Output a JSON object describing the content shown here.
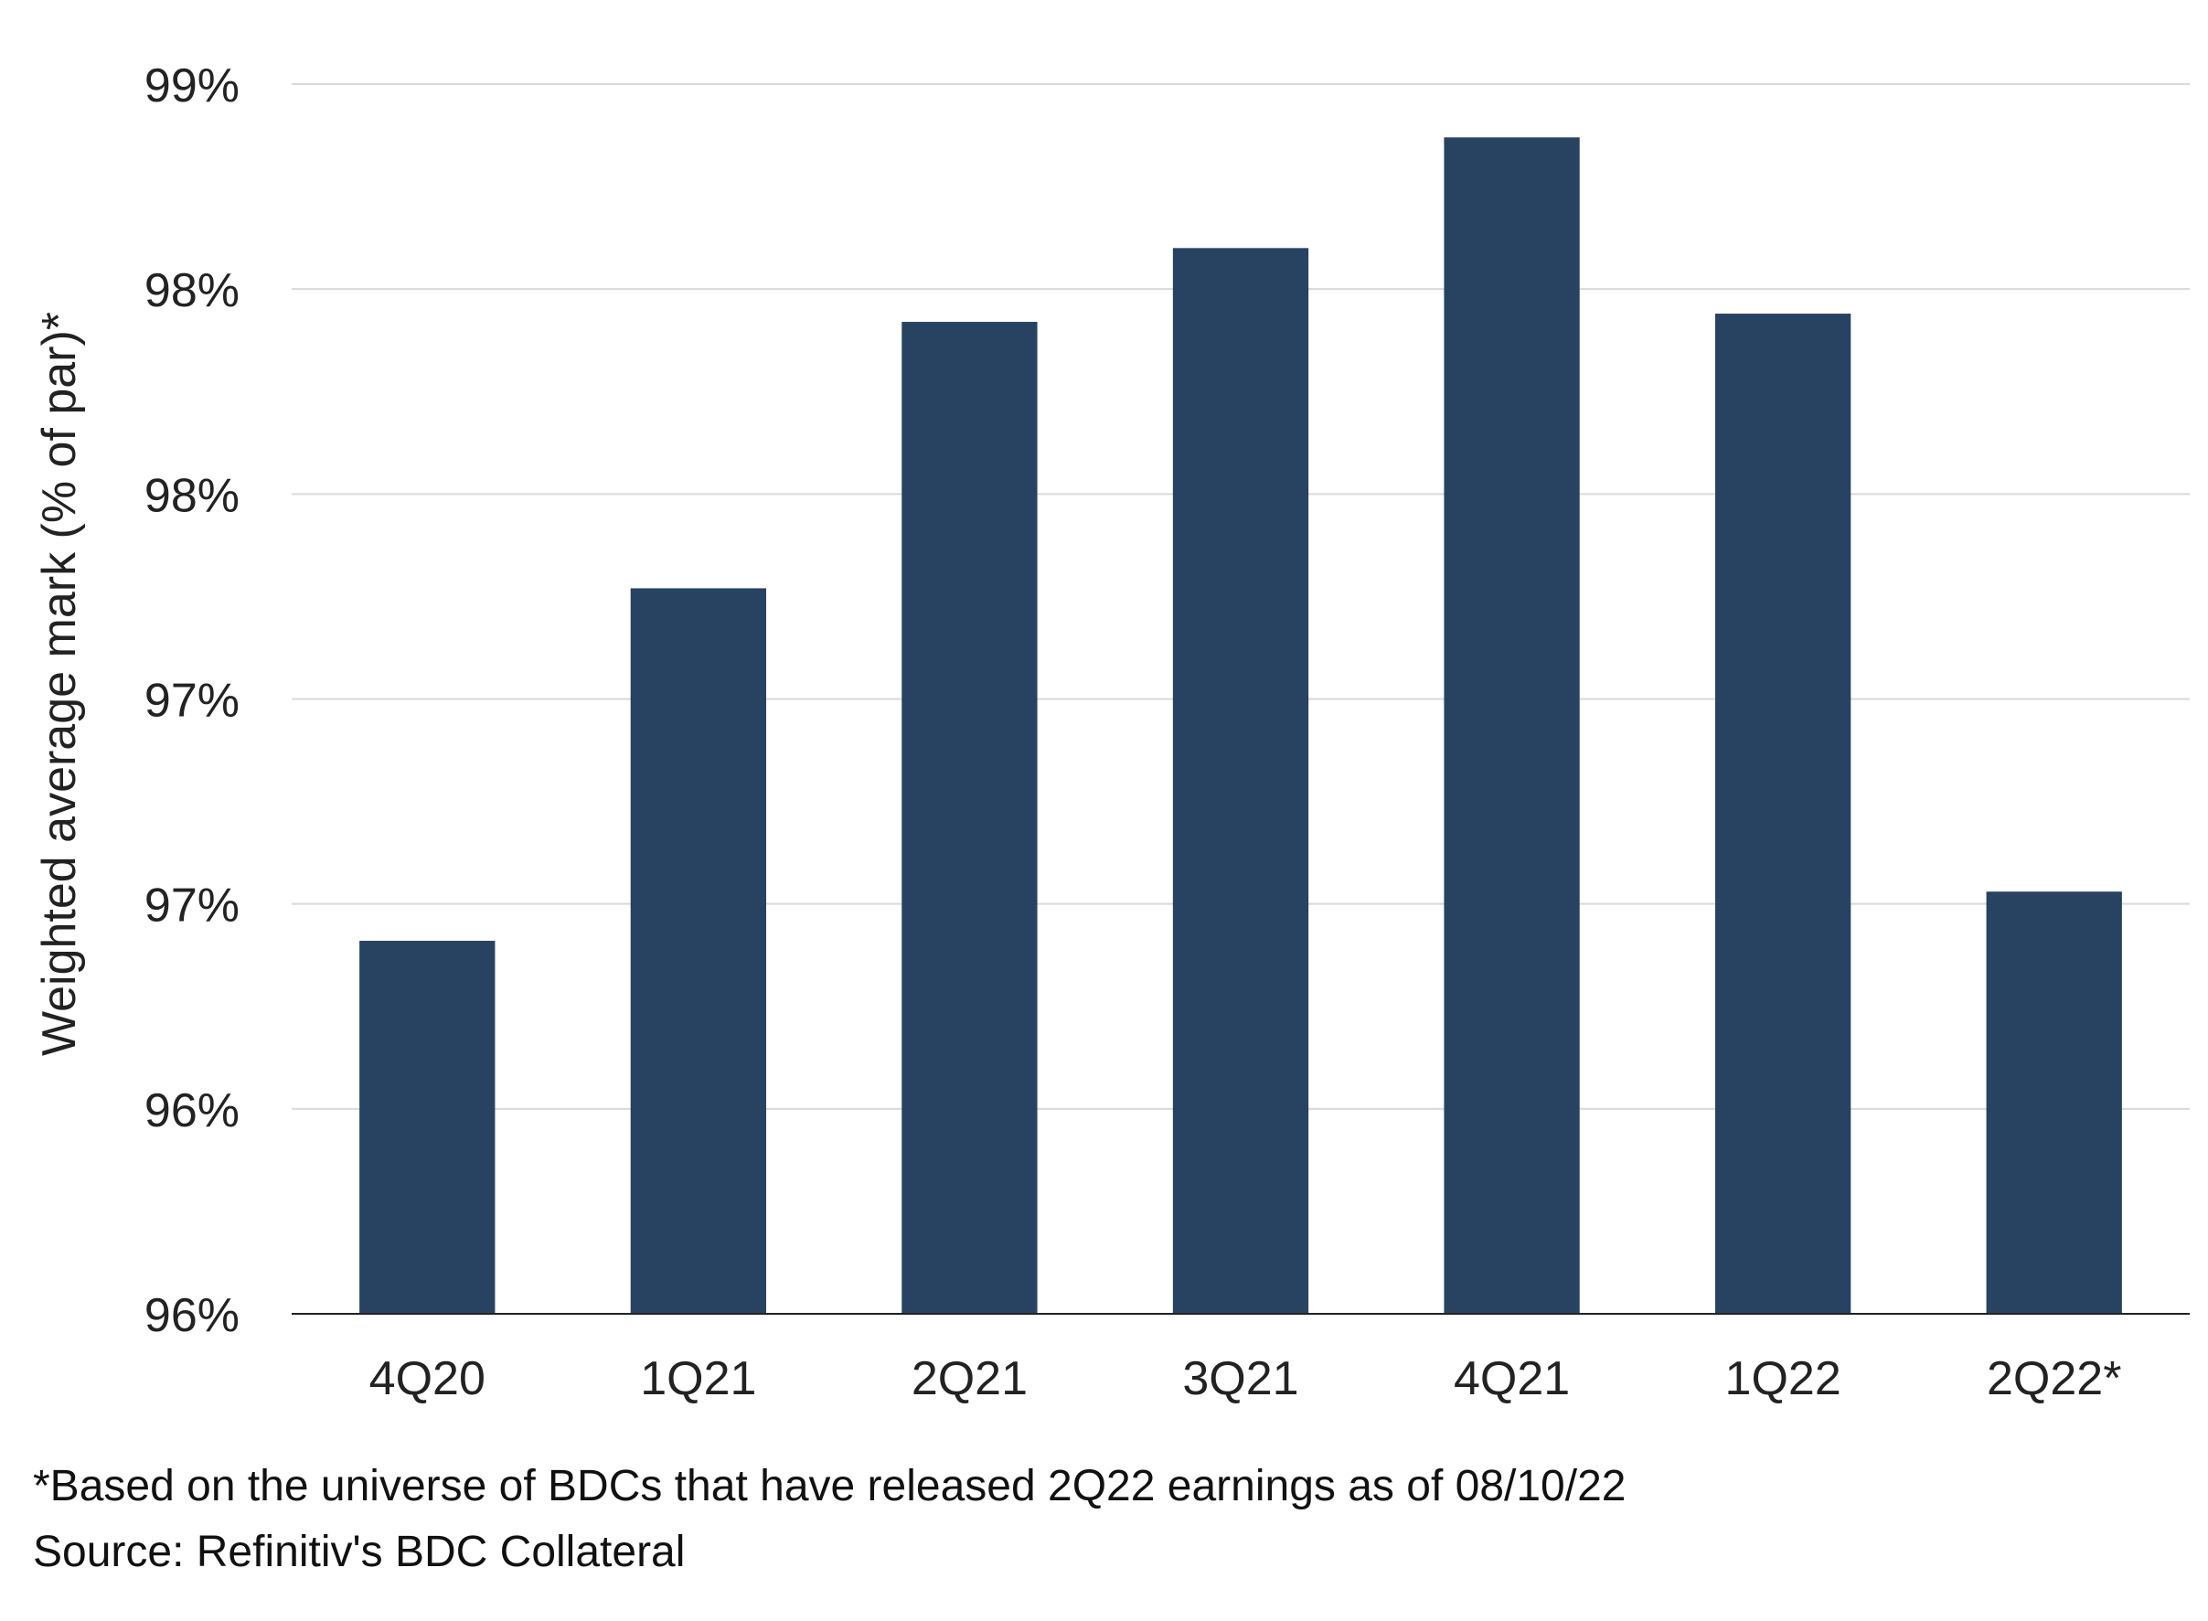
{
  "chart_data": {
    "type": "bar",
    "categories": [
      "4Q20",
      "1Q21",
      "2Q21",
      "3Q21",
      "4Q21",
      "1Q22",
      "2Q22*"
    ],
    "values": [
      96.41,
      97.27,
      97.92,
      98.1,
      98.37,
      97.94,
      96.53
    ],
    "ylabel": "Weighted average mark (% of par)*",
    "xlabel": "",
    "ylim": [
      95.5,
      98.5
    ],
    "yticks": [
      95.5,
      96.0,
      96.5,
      97.0,
      97.5,
      98.0,
      98.5
    ],
    "ytick_labels": [
      "96%",
      "96%",
      "97%",
      "97%",
      "98%",
      "98%",
      "99%"
    ],
    "grid": true,
    "bar_color": "#284261"
  },
  "footnotes": {
    "note": "*Based on the universe of BDCs that have released 2Q22 earnings as of 08/10/22",
    "source": "Source: Refinitiv's BDC Collateral"
  }
}
